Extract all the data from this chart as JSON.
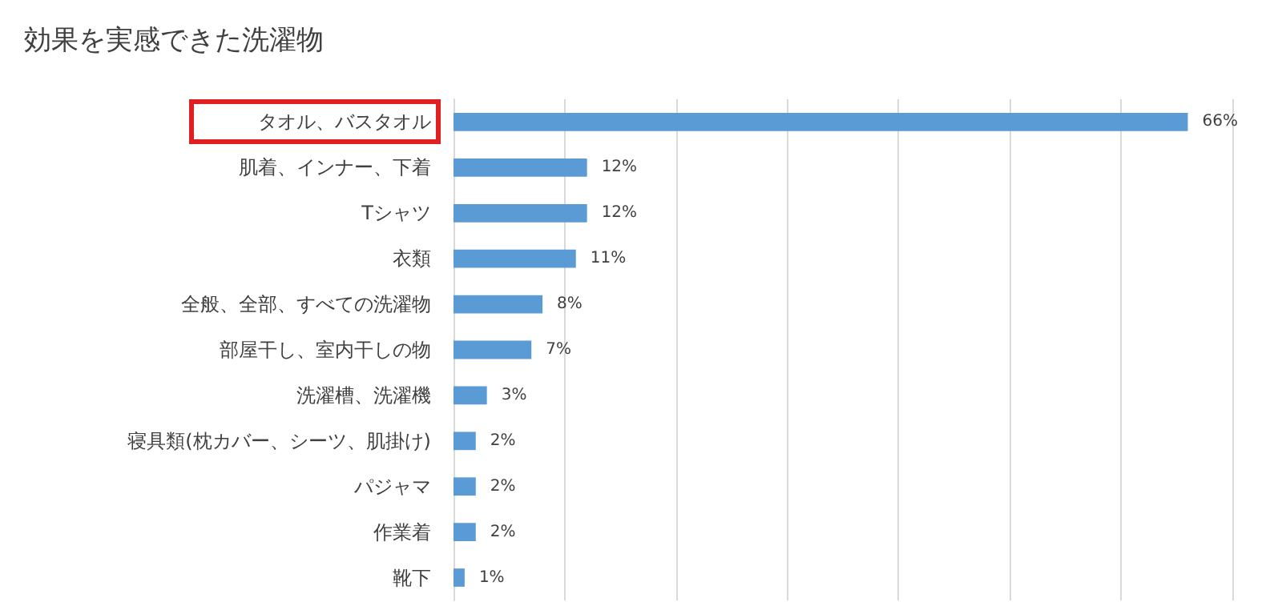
{
  "chart_data": {
    "type": "bar",
    "orientation": "horizontal",
    "title": "効果を実感できた洗濯物",
    "categories": [
      "タオル、バスタオル",
      "肌着、インナー、下着",
      "Tシャツ",
      "衣類",
      "全般、全部、すべての洗濯物",
      "部屋干し、室内干しの物",
      "洗濯槽、洗濯機",
      "寝具類(枕カバー、シーツ、肌掛け)",
      "パジャマ",
      "作業着",
      "靴下"
    ],
    "values": [
      66,
      12,
      12,
      11,
      8,
      7,
      3,
      2,
      2,
      2,
      1
    ],
    "value_labels": [
      "66%",
      "12%",
      "12%",
      "11%",
      "8%",
      "7%",
      "3%",
      "2%",
      "2%",
      "2%",
      "1%"
    ],
    "color": "#5b9bd5",
    "xlim": [
      0,
      70
    ],
    "xticks": [
      {
        "value": 0,
        "label": null
      },
      {
        "value": 10,
        "label": null
      },
      {
        "value": 20,
        "label": null
      },
      {
        "value": 30,
        "label": null
      },
      {
        "value": 40,
        "label": null
      },
      {
        "value": 50,
        "label": null
      },
      {
        "value": 60,
        "label": null
      },
      {
        "value": 70,
        "label": null
      }
    ],
    "grid": "x",
    "tick_labels": "y"
  }
}
